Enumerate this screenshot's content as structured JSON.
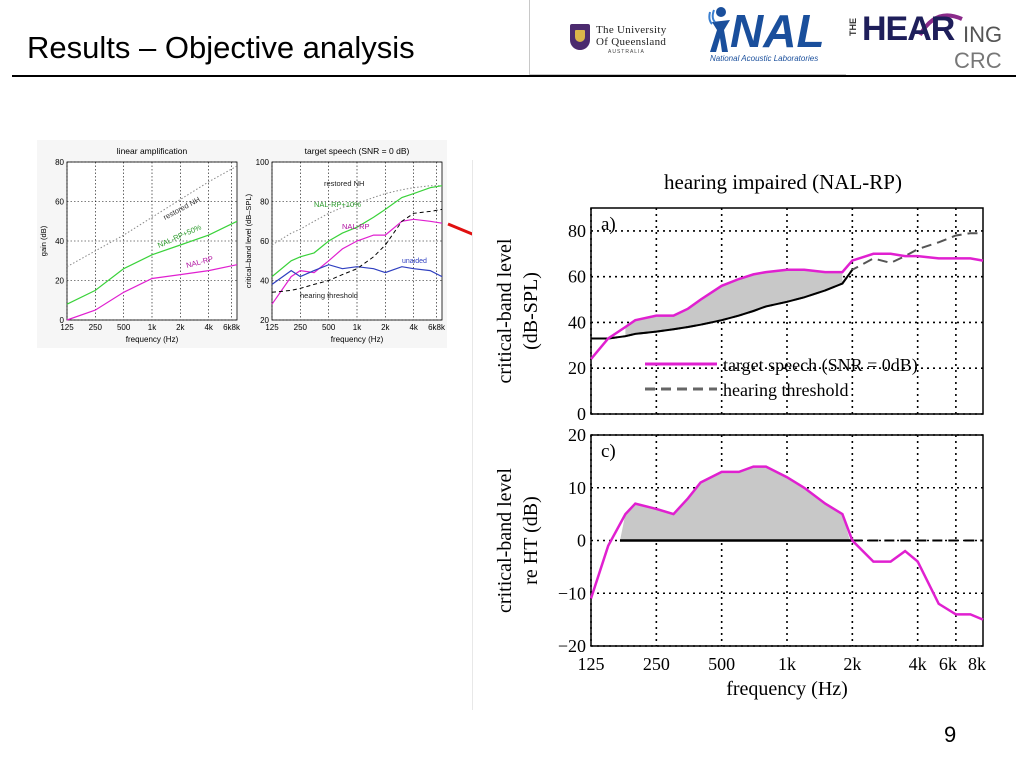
{
  "slide": {
    "title": "Results – Objective analysis",
    "page_number": "9"
  },
  "logos": {
    "uq_line1": "The University",
    "uq_line2": "Of Queensland",
    "uq_line3": "AUSTRALIA",
    "nal_word": "NAL",
    "nal_sub": "National Acoustic Laboratories",
    "hearing_the": "THE",
    "hearing_main": "HEAR",
    "hearing_ing": "ING",
    "hearing_crc": "CRC"
  },
  "colors": {
    "magenta": "#e020d0",
    "green": "#3ad23a",
    "blue": "#2f3fc0",
    "red_arrow": "#e01010",
    "shade": "#c8c8c8"
  },
  "chart_data": [
    {
      "type": "line",
      "title": "linear amplification",
      "xlabel": "frequency (Hz)",
      "ylabel": "gain (dB)",
      "x_ticks": [
        "125",
        "250",
        "500",
        "1k",
        "2k",
        "4k",
        "6k8k"
      ],
      "y_ticks": [
        "0",
        "20",
        "40",
        "60",
        "80"
      ],
      "ylim": [
        0,
        80
      ],
      "grid": true,
      "x": [
        125,
        250,
        500,
        1000,
        2000,
        4000,
        8000
      ],
      "series": [
        {
          "name": "restored NH",
          "values": [
            27,
            35,
            43,
            52,
            61,
            70,
            78
          ]
        },
        {
          "name": "NAL-RP+50%",
          "values": [
            8,
            15,
            26,
            33,
            38,
            43,
            50
          ]
        },
        {
          "name": "NAL-RP",
          "values": [
            0,
            5,
            14,
            21,
            23,
            25,
            28
          ]
        }
      ]
    },
    {
      "type": "line",
      "title": "target speech (SNR = 0 dB)",
      "xlabel": "frequency (Hz)",
      "ylabel": "critical–band level (dB–SPL)",
      "x_ticks": [
        "125",
        "250",
        "500",
        "1k",
        "2k",
        "4k",
        "6k8k"
      ],
      "y_ticks": [
        "20",
        "40",
        "60",
        "80",
        "100"
      ],
      "ylim": [
        20,
        100
      ],
      "grid": true,
      "x": [
        125,
        200,
        250,
        350,
        500,
        700,
        1000,
        1500,
        2000,
        3000,
        4000,
        6000,
        8000
      ],
      "series": [
        {
          "name": "restored NH",
          "values": [
            58,
            64,
            66,
            70,
            74,
            77,
            79,
            82,
            84,
            86,
            87,
            88,
            88
          ]
        },
        {
          "name": "NAL-RP+10%",
          "values": [
            42,
            50,
            52,
            54,
            60,
            64,
            67,
            72,
            76,
            82,
            84,
            87,
            88
          ]
        },
        {
          "name": "NAL-RP",
          "values": [
            28,
            42,
            45,
            44,
            50,
            56,
            60,
            63,
            63,
            70,
            71,
            70,
            69
          ]
        },
        {
          "name": "unaided",
          "values": [
            38,
            45,
            42,
            45,
            48,
            46,
            47,
            46,
            44,
            47,
            46,
            45,
            42
          ]
        },
        {
          "name": "hearing threshold",
          "values": [
            34,
            35,
            36,
            38,
            40,
            43,
            46,
            52,
            58,
            70,
            74,
            75,
            76
          ]
        }
      ],
      "annotations": [
        "restored NH",
        "NAL-RP+10%",
        "NAL-RP",
        "unaided",
        "hearing threshold"
      ]
    },
    {
      "type": "area",
      "title": "hearing impaired (NAL-RP)",
      "panel_label": "a)",
      "xlabel": "",
      "ylabel": "critical-band level (dB-SPL)",
      "x_ticks": [
        "125",
        "250",
        "500",
        "1k",
        "2k",
        "4k",
        "6k",
        "8k"
      ],
      "y_ticks": [
        "0",
        "20",
        "40",
        "60",
        "80"
      ],
      "ylim": [
        0,
        90
      ],
      "grid": true,
      "legend_position": "bottom-right",
      "x": [
        125,
        150,
        180,
        200,
        250,
        300,
        350,
        400,
        500,
        600,
        700,
        800,
        1000,
        1200,
        1500,
        1800,
        2000,
        2500,
        3000,
        3500,
        4000,
        5000,
        6000,
        7000,
        8000
      ],
      "series": [
        {
          "name": "target speech (SNR = 0dB)",
          "values": [
            24,
            33,
            38,
            41,
            43,
            43,
            46,
            50,
            56,
            59,
            61,
            62,
            63,
            63,
            62,
            62,
            67,
            70,
            70,
            69,
            69,
            68,
            68,
            68,
            67
          ]
        },
        {
          "name": "hearing threshold",
          "values": [
            33,
            33,
            34,
            35,
            36,
            37,
            38,
            39,
            41,
            43,
            45,
            47,
            49,
            51,
            54,
            57,
            63,
            68,
            66,
            69,
            72,
            75,
            78,
            79,
            79
          ]
        }
      ]
    },
    {
      "type": "area",
      "title": "",
      "panel_label": "c)",
      "xlabel": "frequency (Hz)",
      "ylabel": "critical-band level re HT (dB)",
      "x_ticks": [
        "125",
        "250",
        "500",
        "1k",
        "2k",
        "4k",
        "6k",
        "8k"
      ],
      "y_ticks": [
        "−20",
        "−10",
        "0",
        "10",
        "20"
      ],
      "ylim": [
        -20,
        20
      ],
      "grid": true,
      "x": [
        125,
        150,
        180,
        200,
        250,
        300,
        350,
        400,
        500,
        600,
        700,
        800,
        1000,
        1200,
        1500,
        1800,
        2000,
        2500,
        3000,
        3500,
        4000,
        5000,
        6000,
        7000,
        8000
      ],
      "series": [
        {
          "name": "level re HT",
          "values": [
            -11,
            -1,
            5,
            7,
            6,
            5,
            8,
            11,
            13,
            13,
            14,
            14,
            12,
            10,
            7,
            5,
            0,
            -4,
            -4,
            -2,
            -4,
            -12,
            -14,
            -14,
            -15
          ]
        }
      ]
    }
  ]
}
